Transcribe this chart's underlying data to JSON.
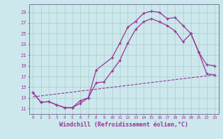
{
  "background_color": "#cce8ec",
  "grid_color": "#aacccc",
  "line_color": "#993399",
  "xlabel": "Windchill (Refroidissement éolien,°C)",
  "xlabel_fontsize": 6.0,
  "ytick_labels": [
    11,
    13,
    15,
    17,
    19,
    21,
    23,
    25,
    27,
    29
  ],
  "xtick_labels": [
    0,
    1,
    2,
    3,
    4,
    5,
    6,
    7,
    8,
    9,
    10,
    11,
    12,
    13,
    14,
    15,
    16,
    17,
    18,
    19,
    20,
    21,
    22,
    23
  ],
  "ylim": [
    10.0,
    30.5
  ],
  "xlim": [
    -0.5,
    23.5
  ],
  "line1_x": [
    0,
    1,
    2,
    3,
    4,
    5,
    6,
    7,
    8,
    10,
    11,
    12,
    13,
    14,
    15,
    16,
    17,
    18,
    19,
    20,
    21,
    22,
    23
  ],
  "line1_y": [
    14.0,
    12.2,
    12.3,
    11.7,
    11.2,
    11.2,
    12.5,
    13.0,
    18.2,
    20.5,
    23.2,
    26.2,
    27.3,
    28.8,
    29.2,
    29.0,
    27.8,
    28.0,
    26.5,
    25.0,
    21.5,
    19.2,
    19.0
  ],
  "line2_x": [
    0,
    1,
    2,
    3,
    4,
    5,
    6,
    7,
    8,
    9,
    10,
    11,
    12,
    13,
    14,
    15,
    16,
    17,
    18,
    19,
    20,
    21,
    22,
    23
  ],
  "line2_y": [
    14.0,
    12.2,
    12.3,
    11.7,
    11.2,
    11.2,
    12.0,
    13.0,
    15.8,
    16.0,
    18.0,
    20.0,
    23.2,
    25.8,
    27.2,
    27.8,
    27.2,
    26.5,
    25.5,
    23.5,
    25.0,
    21.5,
    17.5,
    17.3
  ],
  "line3_x": [
    0,
    23
  ],
  "line3_y": [
    13.2,
    17.3
  ]
}
